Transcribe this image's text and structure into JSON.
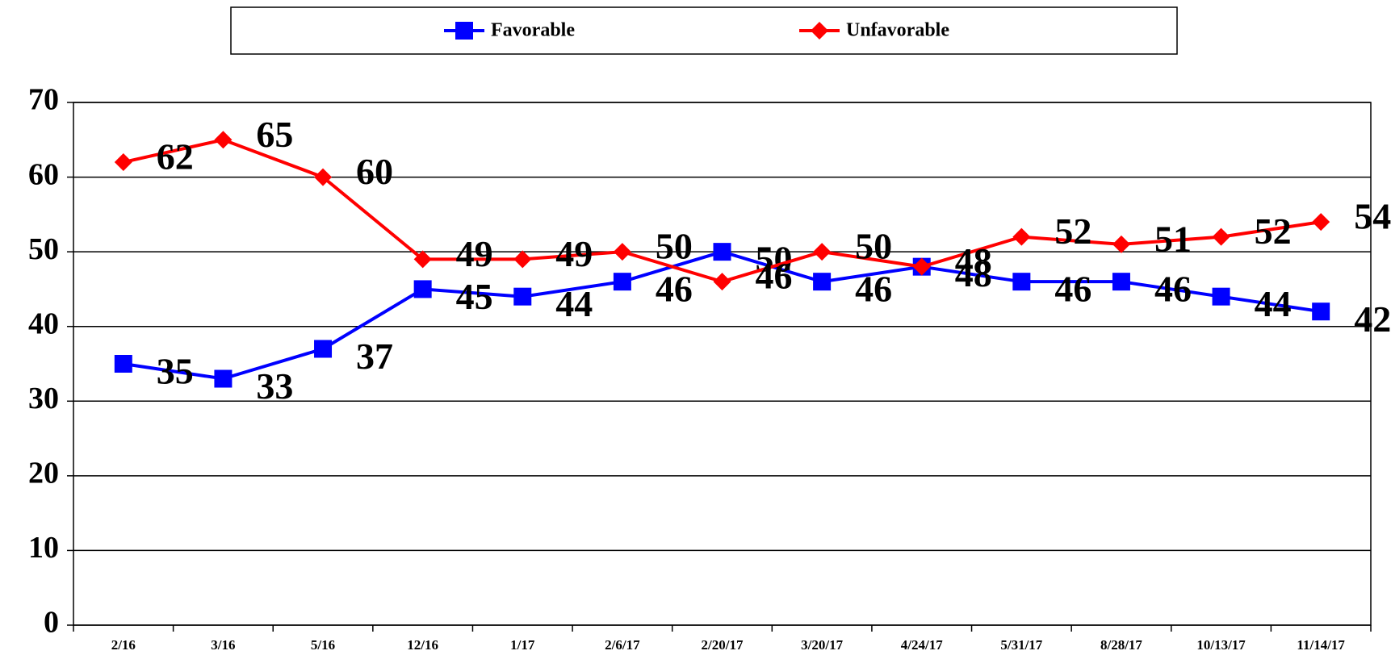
{
  "chart_data": {
    "type": "line",
    "categories": [
      "2/16",
      "3/16",
      "5/16",
      "12/16",
      "1/17",
      "2/6/17",
      "2/20/17",
      "3/20/17",
      "4/24/17",
      "5/31/17",
      "8/28/17",
      "10/13/17",
      "11/14/17"
    ],
    "series": [
      {
        "name": "Favorable",
        "color": "#0000ff",
        "marker": "square",
        "values": [
          35,
          33,
          37,
          45,
          44,
          46,
          50,
          46,
          48,
          46,
          46,
          44,
          42
        ]
      },
      {
        "name": "Unfavorable",
        "color": "#ff0000",
        "marker": "diamond",
        "values": [
          62,
          65,
          60,
          49,
          49,
          50,
          46,
          50,
          48,
          52,
          51,
          52,
          54
        ]
      }
    ],
    "ylim": [
      0,
      70
    ],
    "yticks": [
      0,
      10,
      20,
      30,
      40,
      50,
      60,
      70
    ],
    "grid": true,
    "legend": "top"
  }
}
